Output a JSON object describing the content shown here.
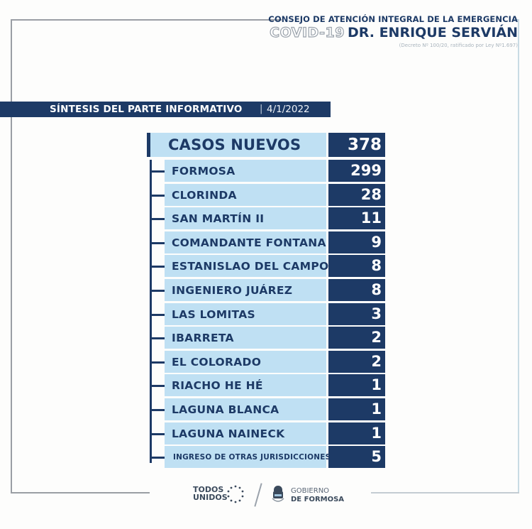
{
  "header": {
    "council": "CONSEJO DE ATENCIÓN INTEGRAL DE LA EMERGENCIA",
    "covid": "COVID-19",
    "name": "DR. ENRIQUE SERVIÁN",
    "decree": "(Decreto Nº 100/20, ratificado por Ley Nº1.697)"
  },
  "banner": {
    "title": "SÍNTESIS DEL PARTE INFORMATIVO",
    "separator": "|",
    "date": "4/1/2022"
  },
  "summary": {
    "label": "CASOS NUEVOS",
    "value": "378"
  },
  "rows": [
    {
      "label": "FORMOSA",
      "value": "299"
    },
    {
      "label": "CLORINDA",
      "value": "28"
    },
    {
      "label": "SAN MARTÍN II",
      "value": "11"
    },
    {
      "label": "COMANDANTE FONTANA",
      "value": "9"
    },
    {
      "label": "ESTANISLAO DEL CAMPO",
      "value": "8"
    },
    {
      "label": "INGENIERO JUÁREZ",
      "value": "8"
    },
    {
      "label": "LAS LOMITAS",
      "value": "3"
    },
    {
      "label": "IBARRETA",
      "value": "2"
    },
    {
      "label": "EL COLORADO",
      "value": "2"
    },
    {
      "label": "RIACHO HE HÉ",
      "value": "1"
    },
    {
      "label": "LAGUNA BLANCA",
      "value": "1"
    },
    {
      "label": "LAGUNA NAINECK",
      "value": "1"
    },
    {
      "label": "INGRESO DE OTRAS JURISDICCIONES",
      "value": "5"
    }
  ],
  "footer": {
    "todos_line1": "TODOS",
    "todos_line2": "UNIDOS",
    "gob_line1": "GOBIERNO",
    "gob_line2": "DE FORMOSA"
  },
  "colors": {
    "navy": "#1d3a66",
    "light_blue": "#bfe0f3",
    "frame_gray": "#9a9ea4"
  }
}
